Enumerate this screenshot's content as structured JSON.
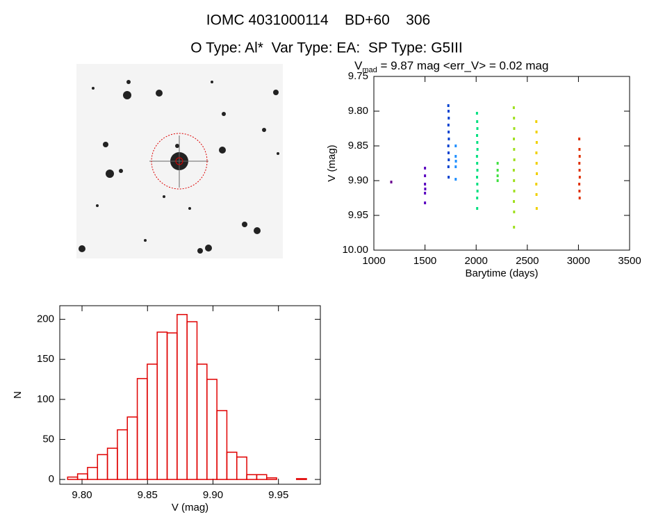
{
  "header": {
    "title": "IOMC 4031000114    BD+60    306",
    "subtitle": "O Type: Al*  Var Type: EA:  SP Type: G5III"
  },
  "chart_data": [
    {
      "type": "scatter",
      "title": {
        "symbol": "V",
        "subscript": "mad",
        "text": " = 9.87 mag <err_V> = 0.02 mag"
      },
      "x_label": "Barytime (days)",
      "y_label": "V (mag)",
      "xlim": [
        1000,
        3500
      ],
      "ylim": [
        9.75,
        10.0
      ],
      "y_inverted": true,
      "xticks": [
        1000,
        1500,
        2000,
        2500,
        3000,
        3500
      ],
      "yticks": [
        {
          "value": 9.75,
          "label": "9.75"
        },
        {
          "value": 9.8,
          "label": "9.80"
        },
        {
          "value": 9.85,
          "label": "9.85"
        },
        {
          "value": 9.9,
          "label": "9.90"
        },
        {
          "value": 9.95,
          "label": "9.95"
        },
        {
          "value": 10.0,
          "label": "10.00"
        }
      ],
      "series": [
        {
          "color": "#6a0090",
          "x": [
            1170
          ],
          "values": [
            9.902
          ]
        },
        {
          "color": "#5a00c0",
          "x": [
            1500,
            1500,
            1500,
            1502,
            1500,
            1500
          ],
          "values": [
            9.882,
            9.893,
            9.905,
            9.912,
            9.918,
            9.932
          ]
        },
        {
          "color": "#0040d0",
          "x": [
            1728,
            1730,
            1732,
            1729,
            1731,
            1733,
            1728,
            1730,
            1732,
            1729,
            1731
          ],
          "values": [
            9.792,
            9.8,
            9.81,
            9.82,
            9.83,
            9.84,
            9.85,
            9.86,
            9.87,
            9.88,
            9.895
          ]
        },
        {
          "color": "#2090ff",
          "x": [
            1800,
            1800,
            1802,
            1800,
            1800
          ],
          "values": [
            9.85,
            9.865,
            9.872,
            9.88,
            9.898
          ]
        },
        {
          "color": "#00e080",
          "x": [
            2008,
            2010,
            2012,
            2009,
            2011,
            2013,
            2008,
            2010,
            2012,
            2009,
            2011,
            2013,
            2010,
            2010
          ],
          "values": [
            9.803,
            9.815,
            9.825,
            9.835,
            9.845,
            9.855,
            9.865,
            9.875,
            9.885,
            9.895,
            9.905,
            9.915,
            9.925,
            9.94
          ]
        },
        {
          "color": "#40e040",
          "x": [
            2210,
            2210,
            2210,
            2210
          ],
          "values": [
            9.875,
            9.885,
            9.893,
            9.9
          ]
        },
        {
          "color": "#a0e020",
          "x": [
            2368,
            2370,
            2372,
            2369,
            2371,
            2373,
            2368,
            2370,
            2372,
            2369,
            2371,
            2370
          ],
          "values": [
            9.795,
            9.81,
            9.825,
            9.84,
            9.855,
            9.87,
            9.885,
            9.9,
            9.915,
            9.93,
            9.945,
            9.967
          ]
        },
        {
          "color": "#f0d000",
          "x": [
            2588,
            2590,
            2592,
            2589,
            2591,
            2593,
            2588,
            2590,
            2592
          ],
          "values": [
            9.815,
            9.83,
            9.845,
            9.86,
            9.875,
            9.89,
            9.905,
            9.92,
            9.94
          ]
        },
        {
          "color": "#e03000",
          "x": [
            3008,
            3010,
            3012,
            3009,
            3011,
            3013,
            3008,
            3010,
            3012
          ],
          "values": [
            9.84,
            9.855,
            9.865,
            9.875,
            9.885,
            9.895,
            9.905,
            9.915,
            9.925
          ]
        }
      ]
    },
    {
      "type": "histogram",
      "x_label": "V (mag)",
      "y_label": "N",
      "color": "#e00000",
      "bins": [
        9.789,
        9.7966,
        9.8042,
        9.8118,
        9.8194,
        9.827,
        9.8346,
        9.8422,
        9.8498,
        9.8574,
        9.865,
        9.8726,
        9.8802,
        9.8878,
        9.8954,
        9.903,
        9.9106,
        9.9182,
        9.9258,
        9.9334,
        9.941,
        9.9486,
        9.9562,
        9.9638,
        9.9714
      ],
      "values": [
        3,
        7,
        15,
        31,
        39,
        62,
        78,
        126,
        144,
        184,
        183,
        206,
        197,
        144,
        125,
        86,
        34,
        28,
        6,
        6,
        2,
        0,
        0,
        1
      ],
      "xlim": [
        9.783,
        9.982
      ],
      "ylim": [
        -6,
        217
      ],
      "xticks": [
        {
          "value": 9.8,
          "label": "9.80"
        },
        {
          "value": 9.85,
          "label": "9.85"
        },
        {
          "value": 9.9,
          "label": "9.90"
        },
        {
          "value": 9.95,
          "label": "9.95"
        }
      ],
      "yticks": [
        0,
        50,
        100,
        150,
        200
      ]
    }
  ]
}
